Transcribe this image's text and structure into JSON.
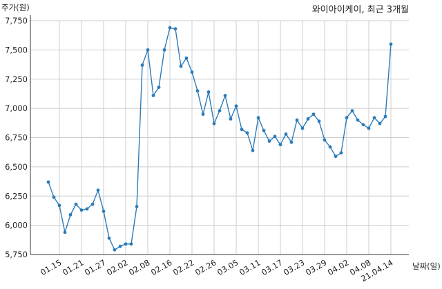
{
  "chart_data": {
    "type": "line",
    "title": "와이아이케이, 최근 3개월",
    "xlabel": "날짜(일)",
    "ylabel": "주가(원)",
    "ylim": [
      5750,
      7750
    ],
    "yticks": [
      "5,750",
      "6,000",
      "6,250",
      "6,500",
      "6,750",
      "7,000",
      "7,250",
      "7,500",
      "7,750"
    ],
    "ytick_values": [
      5750,
      6000,
      6250,
      6500,
      6750,
      7000,
      7250,
      7500,
      7750
    ],
    "xtick_labels": [
      "01.15",
      "01.21",
      "01.27",
      "02.02",
      "02.08",
      "02.16",
      "02.22",
      "02.26",
      "03.05",
      "03.11",
      "03.17",
      "03.23",
      "03.29",
      "04.02",
      "04.08",
      "21.04.14"
    ],
    "xtick_indices": [
      2,
      6,
      10,
      14,
      18,
      22,
      26,
      30,
      34,
      38,
      42,
      46,
      50,
      54,
      58,
      62
    ],
    "grid": true,
    "line_color": "#2b7bb9",
    "series": [
      {
        "values": [
          6370,
          6240,
          6170,
          5940,
          6090,
          6180,
          6130,
          6140,
          6180,
          6300,
          6120,
          5890,
          5790,
          5820,
          5840,
          5840,
          6160,
          7370,
          7500,
          7110,
          7180,
          7500,
          7690,
          7680,
          7360,
          7430,
          7310,
          7150,
          6950,
          7140,
          6870,
          6980,
          7110,
          6910,
          7020,
          6820,
          6790,
          6640,
          6920,
          6810,
          6720,
          6760,
          6690,
          6780,
          6710,
          6900,
          6830,
          6910,
          6950,
          6890,
          6730,
          6670,
          6590,
          6620,
          6920,
          6980,
          6900,
          6860,
          6830,
          6920,
          6870,
          6930,
          7550
        ]
      }
    ]
  }
}
